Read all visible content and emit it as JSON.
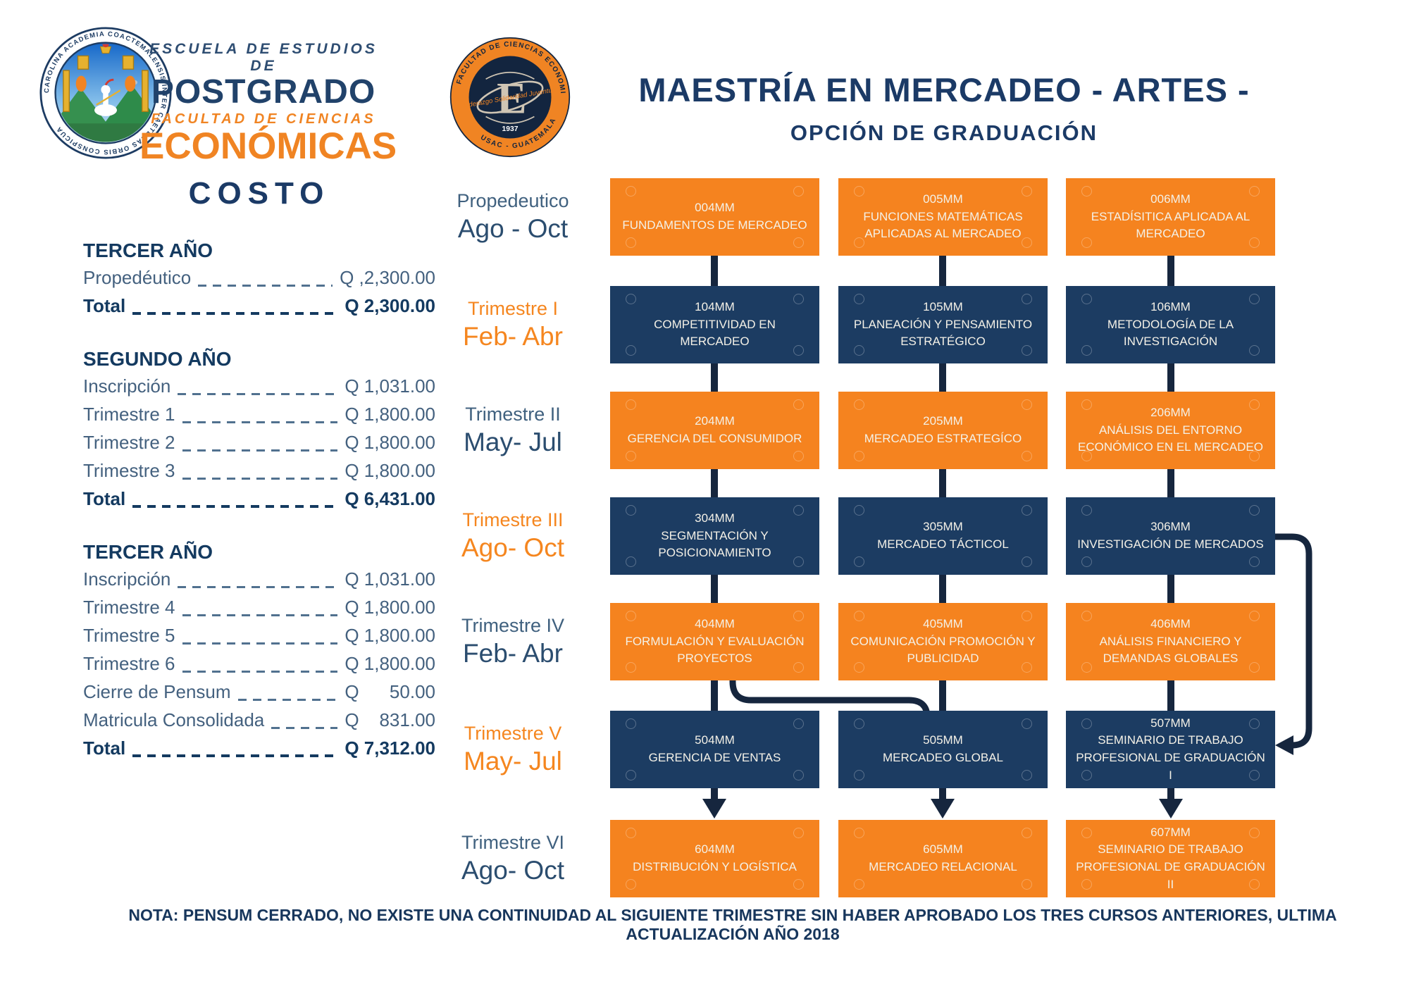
{
  "header": {
    "school_line1": "ESCUELA DE ESTUDIOS DE",
    "school_line2": "POSTGRADO",
    "school_line3": "FACULTAD DE CIENCIAS",
    "school_line4": "ECONÓMICAS",
    "seal_motto": "CAROLINA ACADEMIA COACTEMALENSIS INTER CAETERAS ORBIS CONSPICUA",
    "faculty_seal_top": "FACULTAD DE CIENCIAS ECONOMICAS",
    "faculty_seal_bottom": "USAC - GUATEMALA",
    "faculty_seal_motto": "Liderazgo Solidaridad Juventud",
    "faculty_seal_year": "1937",
    "title_line1": "MAESTRÍA EN MERCADEO - ARTES -",
    "title_line2": "OPCIÓN DE GRADUACIÓN"
  },
  "costs": {
    "heading": "COSTO",
    "sections": [
      {
        "title": "TERCER AÑO",
        "rows": [
          {
            "label": "Propedéutico",
            "value": "Q ,2,300.00",
            "bold": false
          },
          {
            "label": "Total",
            "value": "Q 2,300.00",
            "bold": true
          }
        ]
      },
      {
        "title": "SEGUNDO AÑO",
        "rows": [
          {
            "label": "Inscripción",
            "value": "Q 1,031.00",
            "bold": false
          },
          {
            "label": "Trimestre 1",
            "value": "Q 1,800.00",
            "bold": false
          },
          {
            "label": "Trimestre 2",
            "value": "Q 1,800.00",
            "bold": false
          },
          {
            "label": "Trimestre 3",
            "value": "Q 1,800.00",
            "bold": false
          },
          {
            "label": "Total",
            "value": "Q 6,431.00",
            "bold": true
          }
        ]
      },
      {
        "title": "TERCER AÑO",
        "rows": [
          {
            "label": "Inscripción",
            "value": "Q 1,031.00",
            "bold": false
          },
          {
            "label": "Trimestre 4",
            "value": "Q 1,800.00",
            "bold": false
          },
          {
            "label": "Trimestre 5",
            "value": "Q 1,800.00",
            "bold": false
          },
          {
            "label": "Trimestre 6",
            "value": "Q 1,800.00",
            "bold": false
          },
          {
            "label": "Cierre de Pensum",
            "value": "Q      50.00",
            "bold": false
          },
          {
            "label": "Matricula Consolidada",
            "value": "Q    831.00",
            "bold": false
          },
          {
            "label": "Total",
            "value": "Q 7,312.00",
            "bold": true
          }
        ]
      }
    ]
  },
  "schedule": {
    "rows": [
      {
        "period": "Propedeutico",
        "months": "Ago - Oct",
        "accent": "navy",
        "box_color": "orange",
        "courses": [
          {
            "code": "004MM",
            "name": "FUNDAMENTOS DE MERCADEO"
          },
          {
            "code": "005MM",
            "name": "FUNCIONES MATEMÁTICAS APLICADAS AL MERCADEO"
          },
          {
            "code": "006MM",
            "name": "ESTADÍSITICA APLICADA AL MERCADEO"
          }
        ]
      },
      {
        "period": "Trimestre I",
        "months": "Feb- Abr",
        "accent": "orange",
        "box_color": "navy",
        "courses": [
          {
            "code": "104MM",
            "name": "COMPETITIVIDAD EN MERCADEO"
          },
          {
            "code": "105MM",
            "name": "PLANEACIÓN Y PENSAMIENTO ESTRATÉGICO"
          },
          {
            "code": "106MM",
            "name": "METODOLOGÍA DE LA INVESTIGACIÓN"
          }
        ]
      },
      {
        "period": "Trimestre II",
        "months": "May- Jul",
        "accent": "navy",
        "box_color": "orange",
        "courses": [
          {
            "code": "204MM",
            "name": "GERENCIA DEL CONSUMIDOR"
          },
          {
            "code": "205MM",
            "name": "MERCADEO ESTRATEGÍCO"
          },
          {
            "code": "206MM",
            "name": "ANÁLISIS DEL ENTORNO ECONÓMICO EN EL MERCADEO"
          }
        ]
      },
      {
        "period": "Trimestre III",
        "months": "Ago- Oct",
        "accent": "orange",
        "box_color": "navy",
        "courses": [
          {
            "code": "304MM",
            "name": "SEGMENTACIÓN Y POSICIONAMIENTO"
          },
          {
            "code": "305MM",
            "name": "MERCADEO TÁCTICOL"
          },
          {
            "code": "306MM",
            "name": "INVESTIGACIÓN DE MERCADOS"
          }
        ]
      },
      {
        "period": "Trimestre IV",
        "months": "Feb- Abr",
        "accent": "navy",
        "box_color": "orange",
        "courses": [
          {
            "code": "404MM",
            "name": "FORMULACIÓN Y EVALUACIÓN PROYECTOS"
          },
          {
            "code": "405MM",
            "name": "COMUNICACIÓN PROMOCIÓN Y PUBLICIDAD"
          },
          {
            "code": "406MM",
            "name": "ANÁLISIS FINANCIERO Y DEMANDAS GLOBALES"
          }
        ]
      },
      {
        "period": "Trimestre V",
        "months": "May- Jul",
        "accent": "orange",
        "box_color": "navy",
        "courses": [
          {
            "code": "504MM",
            "name": "GERENCIA DE VENTAS"
          },
          {
            "code": "505MM",
            "name": "MERCADEO GLOBAL"
          },
          {
            "code": "507MM",
            "name": "SEMINARIO DE TRABAJO PROFESIONAL DE GRADUACIÓN I"
          }
        ]
      },
      {
        "period": "Trimestre VI",
        "months": "Ago- Oct",
        "accent": "navy",
        "box_color": "orange",
        "courses": [
          {
            "code": "604MM",
            "name": "DISTRIBUCIÓN Y LOGÍSTICA"
          },
          {
            "code": "605MM",
            "name": "MERCADEO RELACIONAL"
          },
          {
            "code": "607MM",
            "name": "SEMINARIO DE TRABAJO PROFESIONAL DE GRADUACIÓN II"
          }
        ]
      }
    ],
    "note": "NOTA: PENSUM CERRADO, NO EXISTE UNA CONTINUIDAD AL SIGUIENTE TRIMESTRE SIN HABER APROBADO LOS TRES CURSOS ANTERIORES, ULTIMA ACTUALIZACIÓN AÑO 2018"
  },
  "colors": {
    "navy_box": "#1c3c62",
    "orange_box": "#f5831f",
    "connector": "#16263e",
    "title_navy": "#1b3a66",
    "cost_text": "#44617f",
    "accent_orange": "#f5861f"
  }
}
